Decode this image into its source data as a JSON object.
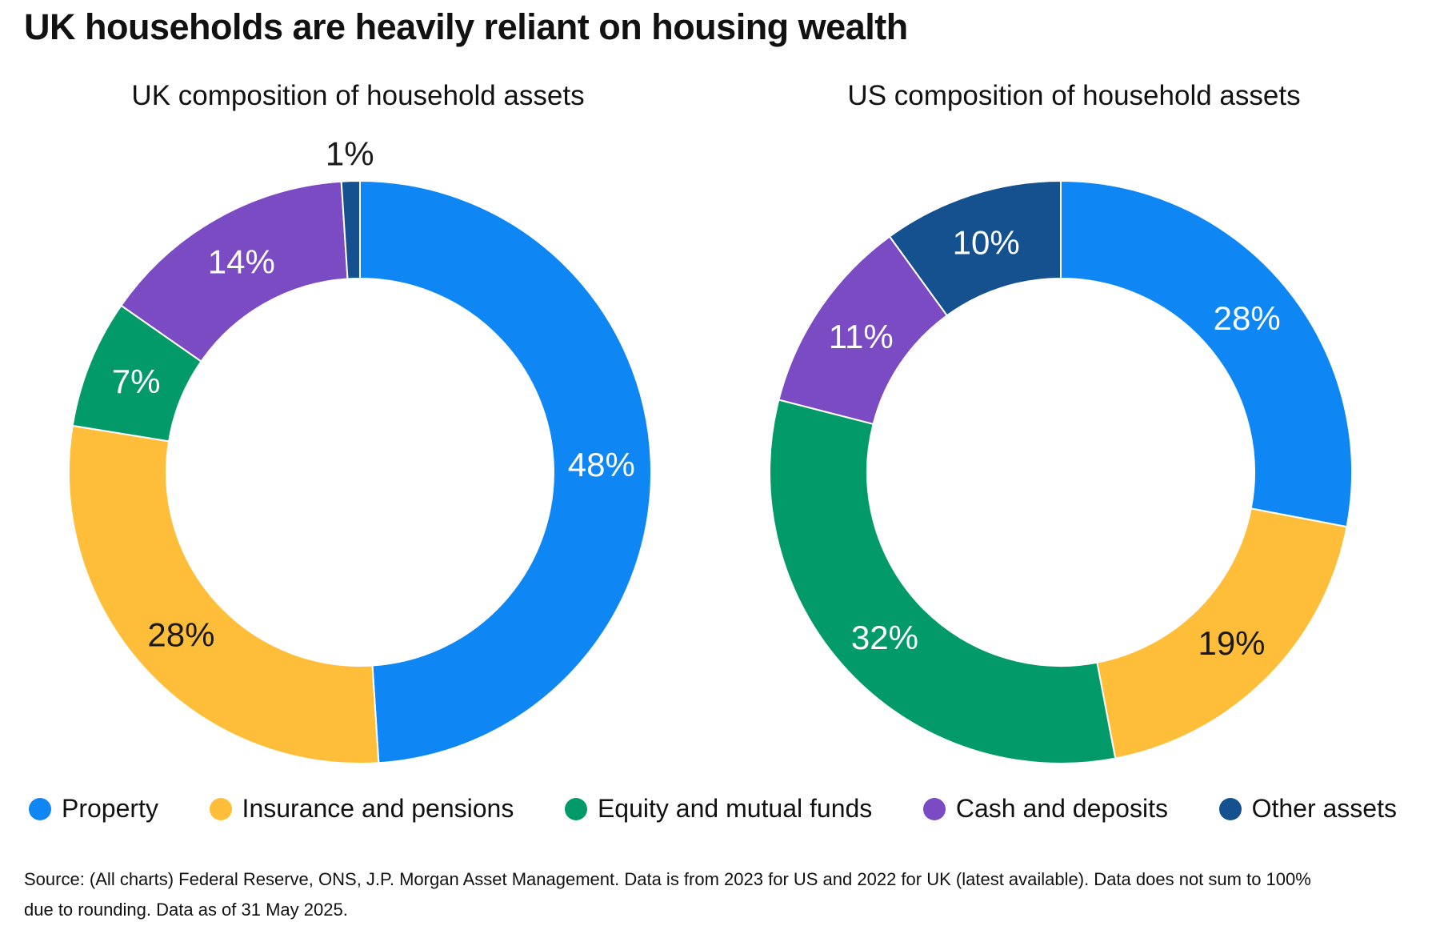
{
  "page_title": "UK households are heavily reliant on housing wealth",
  "legend": {
    "items": [
      {
        "label": "Property",
        "color": "#0E86F4"
      },
      {
        "label": "Insurance and pensions",
        "color": "#FFBE3A"
      },
      {
        "label": "Equity and mutual funds",
        "color": "#029A68"
      },
      {
        "label": "Cash and deposits",
        "color": "#7A4BC2"
      },
      {
        "label": "Other assets",
        "color": "#15518F"
      }
    ]
  },
  "chart_data": [
    {
      "id": "uk-donut",
      "type": "pie",
      "subtype": "donut",
      "title": "UK composition of household assets",
      "categories": [
        "Property",
        "Insurance and pensions",
        "Equity and mutual funds",
        "Cash and deposits",
        "Other assets"
      ],
      "values": [
        48,
        28,
        7,
        14,
        1
      ],
      "labels": [
        "48%",
        "28%",
        "7%",
        "14%",
        "1%"
      ],
      "unit": "%",
      "start_angle": "top",
      "direction": "clockwise",
      "label_colors": [
        "#ffffff",
        "#1a1a1a",
        "#ffffff",
        "#ffffff",
        "#1a1a1a"
      ],
      "label_placement": [
        "inside",
        "inside",
        "inside",
        "inside",
        "outside"
      ]
    },
    {
      "id": "us-donut",
      "type": "pie",
      "subtype": "donut",
      "title": "US composition of household assets",
      "categories": [
        "Property",
        "Insurance and pensions",
        "Equity and mutual funds",
        "Cash and deposits",
        "Other assets"
      ],
      "values": [
        28,
        19,
        32,
        11,
        10
      ],
      "labels": [
        "28%",
        "19%",
        "32%",
        "11%",
        "10%"
      ],
      "unit": "%",
      "start_angle": "top",
      "direction": "clockwise",
      "label_colors": [
        "#ffffff",
        "#1a1a1a",
        "#ffffff",
        "#ffffff",
        "#ffffff"
      ],
      "label_placement": [
        "inside",
        "inside",
        "inside",
        "inside",
        "inside"
      ]
    }
  ],
  "source": {
    "lines": [
      "Source: (All charts) Federal Reserve, ONS, J.P. Morgan Asset Management. Data is from 2023 for US and 2022 for UK (latest available). Data does not sum to 100%",
      "due to rounding. Data as of 31 May 2025."
    ]
  }
}
